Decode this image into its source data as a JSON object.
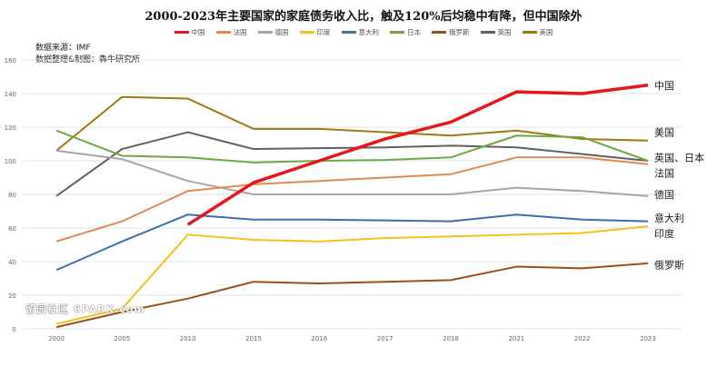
{
  "chart_data": {
    "type": "line",
    "title": "2000-2023年主要国家的家庭债务收入比，触及120%后均稳中有降，但中国除外",
    "source": "数据来源：IMF",
    "credit": "数据整理&制图：犇牛研究所",
    "x": [
      "2000",
      "2005",
      "2010",
      "2015",
      "2016",
      "2017",
      "2018",
      "2021",
      "2022",
      "2023"
    ],
    "yticks": [
      0,
      20,
      40,
      60,
      80,
      100,
      120,
      140,
      160
    ],
    "ylim": [
      0,
      160
    ],
    "grid": true,
    "legend_position": "top",
    "series": [
      {
        "name": "中国",
        "color": "#e8151b",
        "width": 3.5,
        "values": [
          null,
          null,
          62,
          87,
          100,
          113,
          123,
          141,
          140,
          145
        ]
      },
      {
        "name": "法国",
        "color": "#e28a4e",
        "width": 2,
        "values": [
          52,
          64,
          82,
          86,
          88,
          90,
          92,
          102,
          102,
          98
        ]
      },
      {
        "name": "德国",
        "color": "#a6a6a6",
        "width": 2,
        "values": [
          106,
          101,
          88,
          80,
          80,
          80,
          80,
          84,
          82,
          79
        ]
      },
      {
        "name": "印度",
        "color": "#f2c31c",
        "width": 2,
        "values": [
          3,
          12,
          56,
          53,
          52,
          54,
          55,
          56,
          57,
          61
        ]
      },
      {
        "name": "意大利",
        "color": "#3d6eb0",
        "width": 2,
        "values": [
          35,
          52,
          68,
          65,
          65,
          64.5,
          64,
          68,
          65,
          64
        ]
      },
      {
        "name": "日本",
        "color": "#6aaa44",
        "width": 2,
        "values": [
          118,
          103,
          102,
          99,
          100,
          100.5,
          102,
          115,
          114,
          100
        ]
      },
      {
        "name": "俄罗斯",
        "color": "#9a4f1a",
        "width": 2,
        "values": [
          1,
          10,
          18,
          28,
          27,
          28,
          29,
          37,
          36,
          39
        ]
      },
      {
        "name": "英国",
        "color": "#606060",
        "width": 2,
        "values": [
          79,
          107,
          117,
          107,
          107.5,
          108,
          109,
          108,
          104,
          100
        ]
      },
      {
        "name": "美国",
        "color": "#9c7a10",
        "width": 2,
        "values": [
          106,
          138,
          137,
          119,
          119,
          117,
          115,
          118,
          113,
          112
        ]
      }
    ],
    "end_labels": [
      {
        "text": "中国",
        "value": 145
      },
      {
        "text": "美国",
        "value": 117
      },
      {
        "text": "英国、日本",
        "value": 102
      },
      {
        "text": "法国",
        "value": 94
      },
      {
        "text": "德国",
        "value": 80
      },
      {
        "text": "意大利",
        "value": 66
      },
      {
        "text": "印度",
        "value": 58
      },
      {
        "text": "俄罗斯",
        "value": 38
      }
    ]
  },
  "watermark": "留园社区 6PARK.com"
}
